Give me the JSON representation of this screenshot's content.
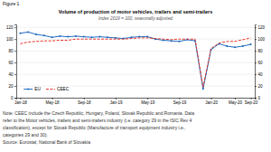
{
  "chart_data": {
    "type": "line",
    "figure_label": "Figure 1",
    "title": "Volume of production of motor vehicles, trailers and semi-trailers",
    "subtitle": "Index 2019 = 100, seasonally adjusted",
    "notes": [
      "Note: CEEC include the Czech Republic, Hungary, Poland, Slovak Republic and Romania. Data",
      "refer to the Motor vehicles, trailers and semi-trailers industry (i.e. category 29 in the ISIC Rev 4",
      "classification), except for Slovak Republic (Manufacture of transport equipment industry i.e.,",
      "categories 29 and 30).",
      "Source: Eurostat; National Bank of Slovakia"
    ],
    "categories": [
      "Jan-18",
      null,
      null,
      null,
      "May-18",
      null,
      null,
      null,
      "Sep-18",
      null,
      null,
      null,
      "Jan-19",
      null,
      null,
      null,
      "May-19",
      null,
      null,
      null,
      "Sep-19",
      null,
      null,
      null,
      "Jan-20",
      null,
      null,
      "May-20",
      null,
      "Sep-20"
    ],
    "series": [
      {
        "name": "EU",
        "color": "#1f6abf",
        "marker": "circle",
        "line_style": "solid",
        "values": [
          110,
          112,
          108,
          106,
          103,
          105,
          104,
          105,
          104,
          103,
          104,
          103,
          102,
          101,
          103,
          104,
          104,
          100,
          98,
          97,
          96,
          99,
          97,
          15,
          82,
          92,
          88,
          86,
          88,
          91
        ]
      },
      {
        "name": "CEEC",
        "color": "#e63329",
        "line_style": "dashed",
        "values": [
          92,
          95,
          96,
          97,
          97,
          98,
          98,
          100,
          100,
          100,
          100,
          100,
          100,
          100,
          101,
          102,
          102,
          101,
          100,
          99,
          100,
          100,
          100,
          18,
          84,
          93,
          96,
          96,
          99,
          102
        ]
      }
    ],
    "ylim": [
      0,
      125
    ],
    "yticks": [
      0,
      20,
      40,
      60,
      80,
      100,
      120
    ],
    "y2lim": [
      0,
      125
    ],
    "y2ticks": [
      0,
      20,
      40,
      60,
      80,
      100,
      120
    ],
    "grid": true,
    "legend": "lower left"
  }
}
